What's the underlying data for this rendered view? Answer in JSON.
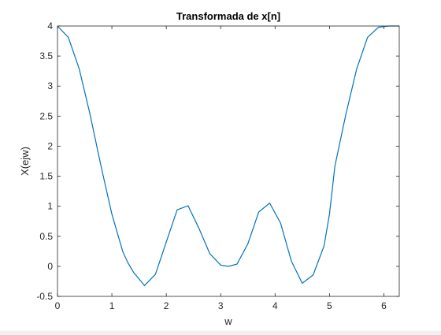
{
  "chart_data": {
    "type": "line",
    "title": "Transformada de x[n]",
    "xlabel": "w",
    "ylabel": "X(ejw)",
    "xlim": [
      0,
      6.2832
    ],
    "ylim": [
      -0.5,
      4
    ],
    "xticks": [
      0,
      1,
      2,
      3,
      4,
      5,
      6
    ],
    "xtick_labels": [
      "0",
      "1",
      "2",
      "3",
      "4",
      "5",
      "6"
    ],
    "yticks": [
      -0.5,
      0,
      0.5,
      1,
      1.5,
      2,
      2.5,
      3,
      3.5,
      4
    ],
    "ytick_labels": [
      "-0.5",
      "0",
      "0.5",
      "1",
      "1.5",
      "2",
      "2.5",
      "3",
      "3.5",
      "4"
    ],
    "grid": false,
    "line_color": "#0072BD",
    "series": [
      {
        "x": [
          0,
          0.2,
          0.4,
          0.6,
          0.8,
          1.0,
          1.2,
          1.3,
          1.4,
          1.6,
          1.8,
          2.0,
          2.2,
          2.4,
          2.6,
          2.8,
          3.0,
          3.1416,
          3.3,
          3.5,
          3.7,
          3.9,
          4.1,
          4.3,
          4.5,
          4.7,
          4.9,
          5.0,
          5.1,
          5.3,
          5.5,
          5.7,
          5.9,
          6.1,
          6.2832
        ],
        "y": [
          4.0,
          3.811,
          3.285,
          2.524,
          1.669,
          0.868,
          0.245,
          0.05,
          -0.101,
          -0.319,
          -0.133,
          0.404,
          0.941,
          1.009,
          0.634,
          0.212,
          0.021,
          0.0,
          0.037,
          0.376,
          0.904,
          1.053,
          0.722,
          0.086,
          -0.282,
          -0.142,
          0.339,
          0.868,
          1.669,
          2.524,
          3.285,
          3.811,
          3.98,
          4.0,
          4.0
        ]
      }
    ]
  }
}
